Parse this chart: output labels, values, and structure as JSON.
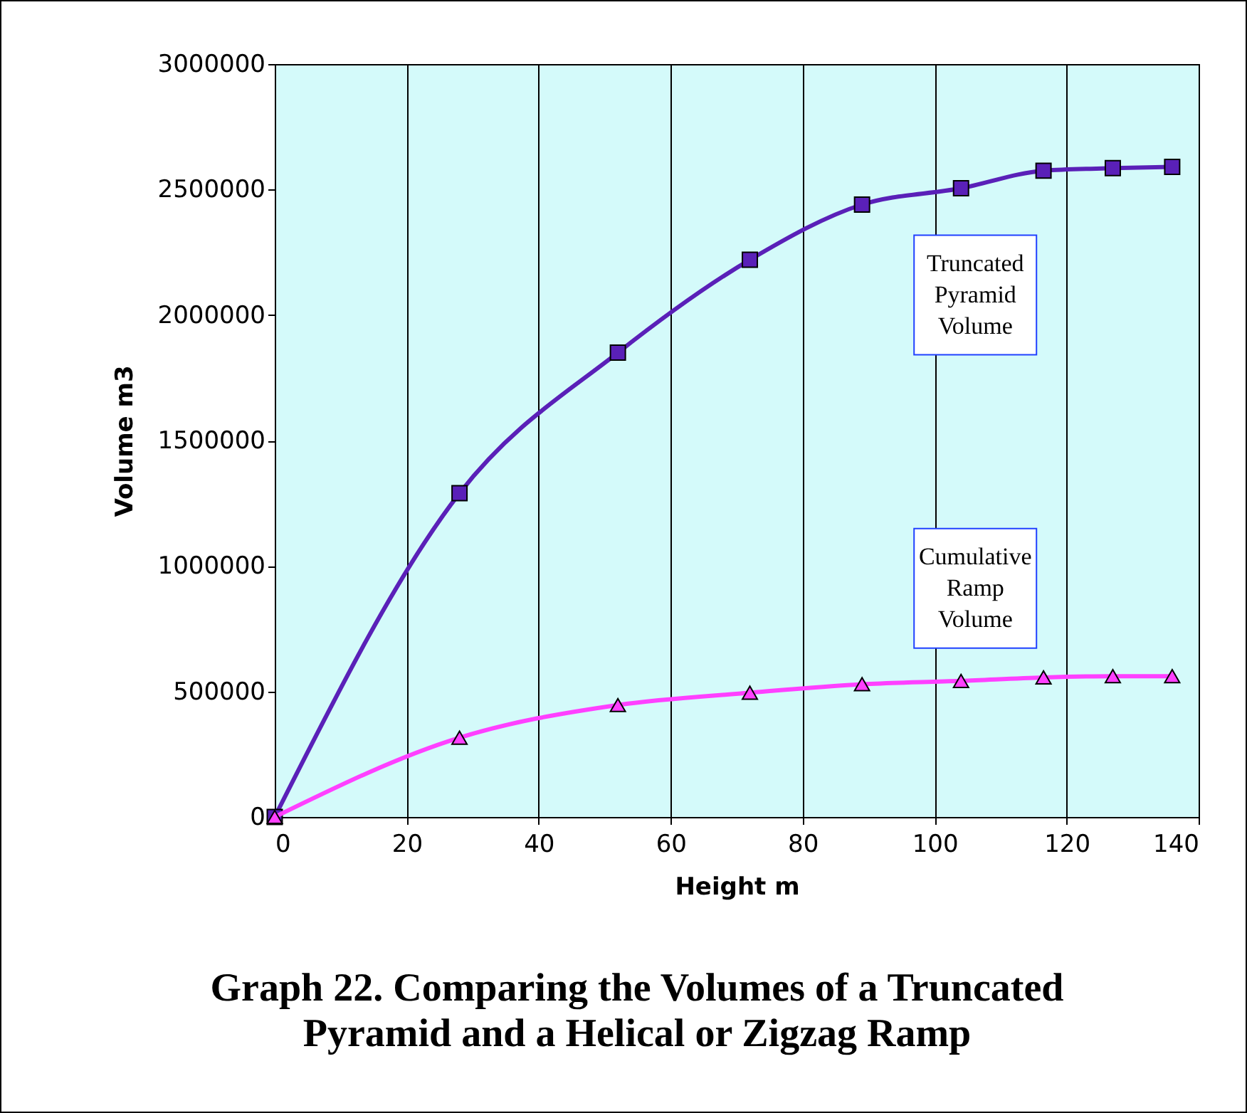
{
  "chart_data": {
    "type": "line",
    "title": "Graph 22. Comparing the Volumes of a Truncated Pyramid and a Helical or Zigzag Ramp",
    "xlabel": "Height  m",
    "ylabel": "Volume  m3",
    "xlim": [
      0,
      140
    ],
    "xticks": [
      0,
      20,
      40,
      60,
      80,
      100,
      120,
      140
    ],
    "ylim": [
      0,
      3000000
    ],
    "yticks": [
      0,
      500000,
      1000000,
      1500000,
      2000000,
      2500000,
      3000000
    ],
    "grid": "x",
    "x": [
      0,
      28,
      52,
      72,
      89,
      104,
      116.5,
      127,
      136
    ],
    "series": [
      {
        "name": "Truncated Pyramid Volume",
        "color": "#5a20b8",
        "marker": "square",
        "values": [
          0,
          1290000,
          1850000,
          2220000,
          2440000,
          2505000,
          2575000,
          2585000,
          2590000
        ]
      },
      {
        "name": "Cumulative Ramp Volume",
        "color": "#ff40ff",
        "marker": "triangle",
        "values": [
          0,
          316000,
          446000,
          495000,
          529000,
          542000,
          556000,
          561000,
          561000
        ]
      }
    ]
  }
}
